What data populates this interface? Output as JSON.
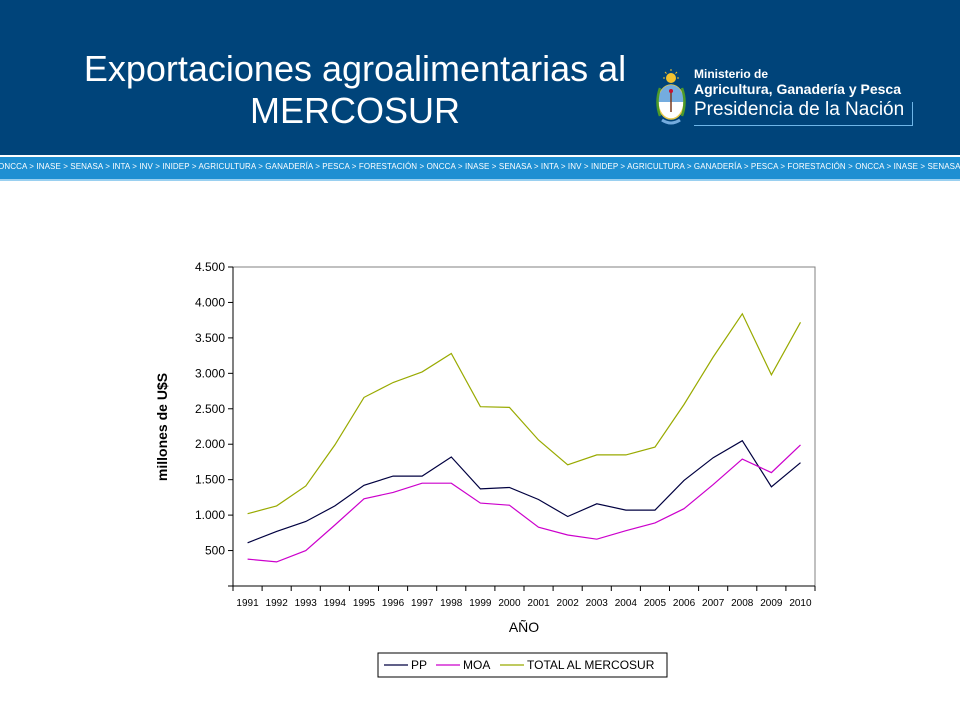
{
  "header": {
    "title_line1": "Exportaciones agroalimentarias al",
    "title_line2": "MERCOSUR",
    "ministry_line1": "Ministerio de",
    "ministry_line2": "Agricultura, Ganadería y Pesca",
    "ministry_line3": "Presidencia de la Nación",
    "strip_text": "ONCCA > INASE > SENASA > INTA > INV > INIDEP > AGRICULTURA > GANADERÍA > PESCA > FORESTACIÓN > ONCCA > INASE > SENASA > INTA > INV > INIDEP > AGRICULTURA > GANADERÍA > PESCA > FORESTACIÓN > ONCCA > INASE > SENASA",
    "colors": {
      "header_bg": "#00447a",
      "strip_bg": "#1e8fd2"
    }
  },
  "chart_data": {
    "type": "line",
    "title": "",
    "xlabel": "AÑO",
    "ylabel": "millones de U$S",
    "ylim": [
      0,
      4500
    ],
    "yticks": [
      500,
      1000,
      1500,
      2000,
      2500,
      3000,
      3500,
      4000,
      4500
    ],
    "ytick_labels": [
      "500",
      "1.000",
      "1.500",
      "2.000",
      "2.500",
      "3.000",
      "3.500",
      "4.000",
      "4.500"
    ],
    "categories": [
      "1991",
      "1992",
      "1993",
      "1994",
      "1995",
      "1996",
      "1997",
      "1998",
      "1999",
      "2000",
      "2001",
      "2002",
      "2003",
      "2004",
      "2005",
      "2006",
      "2007",
      "2008",
      "2009",
      "2010"
    ],
    "legend_position": "bottom",
    "series": [
      {
        "name": "PP",
        "color": "#000040",
        "values": [
          610,
          770,
          910,
          1130,
          1420,
          1550,
          1550,
          1820,
          1370,
          1390,
          1220,
          980,
          1160,
          1070,
          1070,
          1490,
          1810,
          2050,
          1400,
          1740
        ]
      },
      {
        "name": "MOA",
        "color": "#cc00cc",
        "values": [
          380,
          340,
          500,
          860,
          1230,
          1320,
          1450,
          1450,
          1170,
          1140,
          830,
          720,
          660,
          780,
          890,
          1090,
          1430,
          1790,
          1600,
          1990
        ]
      },
      {
        "name": "TOTAL AL MERCOSUR",
        "color": "#99aa00",
        "values": [
          1020,
          1130,
          1410,
          1990,
          2660,
          2870,
          3020,
          3280,
          2530,
          2520,
          2060,
          1710,
          1850,
          1850,
          1960,
          2560,
          3230,
          3840,
          2980,
          3720
        ]
      }
    ]
  }
}
